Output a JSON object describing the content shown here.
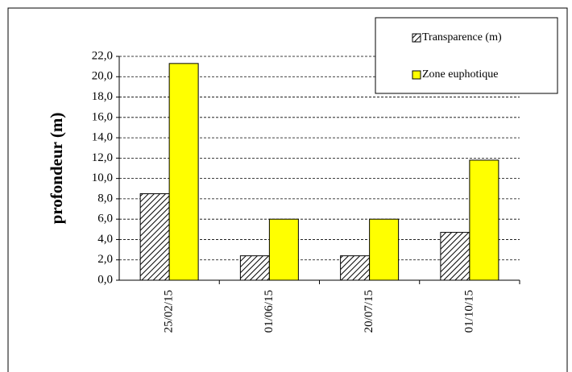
{
  "chart_data": {
    "type": "bar",
    "y_label": "profondeur (m)",
    "categories": [
      "25/02/15",
      "01/06/15",
      "20/07/15",
      "01/10/15"
    ],
    "series": [
      {
        "name": "Transparence (m)",
        "color": "#000000",
        "hatch": true,
        "values": [
          8.5,
          2.4,
          2.4,
          4.7
        ]
      },
      {
        "name": "Zone euphotique",
        "color": "#ffff00",
        "hatch": false,
        "values": [
          21.3,
          6.0,
          6.0,
          11.8
        ]
      }
    ],
    "ylim": [
      0,
      22
    ],
    "yticks": [
      {
        "value": 0,
        "label": "0,0"
      },
      {
        "value": 2,
        "label": "2,0"
      },
      {
        "value": 4,
        "label": "4,0"
      },
      {
        "value": 6,
        "label": "6,0"
      },
      {
        "value": 8,
        "label": "8,0"
      },
      {
        "value": 10,
        "label": "10,0"
      },
      {
        "value": 12,
        "label": "12,0"
      },
      {
        "value": 14,
        "label": "14,0"
      },
      {
        "value": 16,
        "label": "16,0"
      },
      {
        "value": 18,
        "label": "18,0"
      },
      {
        "value": 20,
        "label": "20,0"
      },
      {
        "value": 22,
        "label": "22,0"
      }
    ],
    "grid": true,
    "legend": "top-right"
  }
}
